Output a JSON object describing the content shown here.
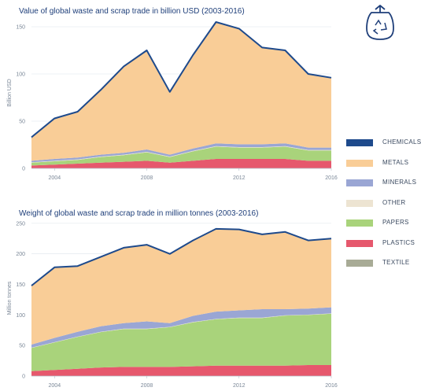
{
  "chart_data": [
    {
      "type": "area",
      "title": "Value of global waste and scrap trade in billion USD (2003-2016)",
      "ylabel": "Billion USD",
      "xlabel": "",
      "x": [
        2003,
        2004,
        2005,
        2006,
        2007,
        2008,
        2009,
        2010,
        2011,
        2012,
        2013,
        2014,
        2015,
        2016
      ],
      "xticks": [
        "2004",
        "2008",
        "2012",
        "2016"
      ],
      "yticks": [
        0,
        50,
        100,
        150
      ],
      "ylim": [
        0,
        160
      ],
      "stacked": true,
      "series": [
        {
          "name": "PLASTICS",
          "values": [
            3,
            4,
            5,
            6,
            7,
            8,
            6,
            8,
            10,
            10,
            10,
            10,
            8,
            8
          ]
        },
        {
          "name": "PAPERS",
          "values": [
            3,
            3.5,
            4,
            6,
            7,
            9,
            6,
            10,
            13,
            12,
            12,
            13,
            11,
            11
          ]
        },
        {
          "name": "OTHER",
          "values": [
            0.5,
            0.5,
            0.5,
            0.5,
            0.5,
            0.5,
            0.5,
            0.5,
            0.5,
            0.5,
            0.5,
            0.5,
            0.5,
            0.5
          ]
        },
        {
          "name": "MINERALS",
          "values": [
            1.5,
            2,
            2,
            2,
            2,
            2.5,
            2,
            2.5,
            3,
            3,
            3,
            3,
            2.5,
            2.5
          ]
        },
        {
          "name": "METALS",
          "values": [
            24,
            42,
            48,
            68,
            91,
            104,
            66,
            98,
            128,
            122,
            102,
            98,
            78,
            74
          ]
        },
        {
          "name": "CHEMICALS",
          "values": [
            0.5,
            0.5,
            0.5,
            0.5,
            0.5,
            0.5,
            0.5,
            0.5,
            0.5,
            0.5,
            0.5,
            0.5,
            0.5,
            0.5
          ]
        }
      ],
      "total_line": [
        33,
        53,
        60,
        83,
        108,
        125,
        81,
        120,
        155,
        148,
        128,
        125,
        100,
        96
      ]
    },
    {
      "type": "area",
      "title": "Weight of global waste and scrap trade in million tonnes (2003-2016)",
      "ylabel": "Million tonnes",
      "xlabel": "",
      "x": [
        2003,
        2004,
        2005,
        2006,
        2007,
        2008,
        2009,
        2010,
        2011,
        2012,
        2013,
        2014,
        2015,
        2016
      ],
      "xticks": [
        "2004",
        "2008",
        "2012",
        "2016"
      ],
      "yticks": [
        0,
        50,
        100,
        150,
        200,
        250
      ],
      "ylim": [
        0,
        255
      ],
      "stacked": true,
      "series": [
        {
          "name": "PLASTICS",
          "values": [
            8,
            10,
            12,
            14,
            15,
            15,
            15,
            16,
            17,
            17,
            17,
            17,
            18,
            18
          ]
        },
        {
          "name": "PAPERS",
          "values": [
            38,
            45,
            52,
            58,
            62,
            62,
            65,
            72,
            76,
            78,
            78,
            82,
            82,
            84
          ]
        },
        {
          "name": "OTHER",
          "values": [
            0.5,
            0.5,
            0.5,
            0.5,
            0.5,
            0.5,
            0.5,
            0.5,
            0.5,
            0.5,
            0.5,
            0.5,
            0.5,
            0.5
          ]
        },
        {
          "name": "MINERALS",
          "values": [
            5,
            7,
            8,
            9,
            9,
            12,
            6,
            10,
            12,
            12,
            14,
            10,
            10,
            10
          ]
        },
        {
          "name": "METALS",
          "values": [
            96,
            115,
            107,
            113,
            123,
            125,
            113,
            123,
            135,
            132,
            122,
            126,
            111,
            112
          ]
        },
        {
          "name": "CHEMICALS",
          "values": [
            0.5,
            0.5,
            0.5,
            0.5,
            0.5,
            0.5,
            0.5,
            0.5,
            0.5,
            0.5,
            0.5,
            0.5,
            0.5,
            0.5
          ]
        }
      ],
      "total_line": [
        148,
        178,
        180,
        195,
        210,
        215,
        200,
        222,
        241,
        240,
        232,
        236,
        222,
        225
      ]
    }
  ],
  "legend": [
    {
      "name": "CHEMICALS",
      "color": "#1e4a8c"
    },
    {
      "name": "METALS",
      "color": "#f9cd97"
    },
    {
      "name": "MINERALS",
      "color": "#9aa6d4"
    },
    {
      "name": "OTHER",
      "color": "#ede4d2"
    },
    {
      "name": "PAPERS",
      "color": "#a9d37b"
    },
    {
      "name": "PLASTICS",
      "color": "#e6586d"
    },
    {
      "name": "TEXTILE",
      "color": "#a8ab96"
    }
  ],
  "colors": {
    "CHEMICALS": "#1e4a8c",
    "METALS": "#f9cd97",
    "MINERALS": "#9aa6d4",
    "OTHER": "#ede4d2",
    "PAPERS": "#a9d37b",
    "PLASTICS": "#e6586d",
    "TEXTILE": "#a8ab96",
    "title": "#1f3f7a",
    "icon": "#1f3f7a"
  },
  "icon": "recycle-bag-icon"
}
